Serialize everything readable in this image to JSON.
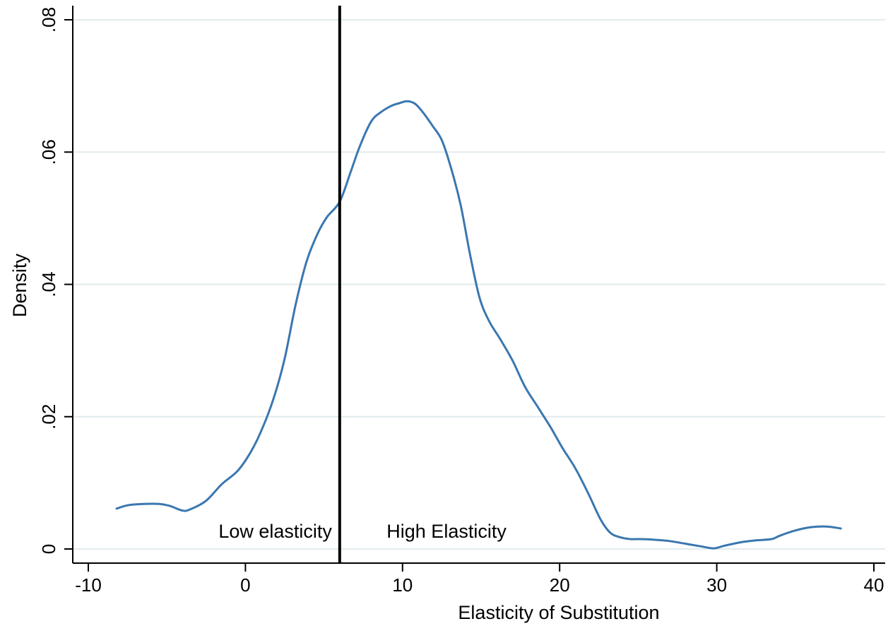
{
  "chart_data": {
    "type": "line",
    "title": "",
    "xlabel": "Elasticity of Substitution",
    "ylabel": "Density",
    "xlim": [
      -10.5,
      40.5
    ],
    "ylim": [
      0,
      0.08
    ],
    "x_ticks": [
      -10,
      0,
      10,
      20,
      30,
      40
    ],
    "x_tick_labels": [
      "-10",
      "0",
      "10",
      "20",
      "30",
      "40"
    ],
    "y_ticks": [
      0,
      0.02,
      0.04,
      0.06,
      0.08
    ],
    "y_tick_labels": [
      "0",
      ".02",
      ".04",
      ".06",
      ".08"
    ],
    "grid": "horizontal",
    "line_color": "#3a77b0",
    "series": [
      {
        "x": [
          -8.2,
          -7.5,
          -6.5,
          -5.5,
          -4.8,
          -4.0,
          -3.5,
          -2.5,
          -1.5,
          -0.5,
          0.3,
          1.0,
          1.8,
          2.5,
          3.2,
          3.9,
          4.6,
          5.2,
          6.0,
          6.7,
          7.3,
          8.0,
          8.6,
          9.3,
          9.8,
          10.3,
          10.8,
          11.3,
          11.9,
          12.5,
          13.1,
          13.7,
          14.3,
          14.9,
          15.5,
          16.2,
          17.0,
          17.8,
          18.6,
          19.4,
          20.2,
          21.0,
          21.8,
          22.6,
          23.2,
          23.8,
          24.5,
          25.2,
          26.0,
          27.0,
          28.0,
          29.0,
          29.8,
          30.5,
          31.5,
          32.5,
          33.5,
          34.0,
          35.0,
          36.0,
          37.0,
          37.9
        ],
        "y": [
          0.0061,
          0.0066,
          0.0068,
          0.0068,
          0.0065,
          0.0058,
          0.006,
          0.0073,
          0.0098,
          0.0118,
          0.0145,
          0.0178,
          0.0228,
          0.0288,
          0.037,
          0.0435,
          0.0477,
          0.0502,
          0.0525,
          0.057,
          0.061,
          0.0646,
          0.066,
          0.067,
          0.0674,
          0.0677,
          0.0673,
          0.066,
          0.064,
          0.0618,
          0.0575,
          0.052,
          0.0445,
          0.038,
          0.0345,
          0.0318,
          0.0285,
          0.0245,
          0.0215,
          0.0185,
          0.0152,
          0.0122,
          0.0085,
          0.0045,
          0.0025,
          0.0018,
          0.0015,
          0.0015,
          0.0014,
          0.0012,
          0.0008,
          0.0004,
          0.0001,
          0.0005,
          0.001,
          0.0013,
          0.0015,
          0.002,
          0.0028,
          0.0033,
          0.0034,
          0.0031
        ]
      }
    ],
    "vertical_line": {
      "x": 6.0,
      "color": "#000000"
    },
    "annotations": [
      {
        "text": "Low elasticity",
        "x": 1.9,
        "y": 0.0017
      },
      {
        "text": "High Elasticity",
        "x": 12.8,
        "y": 0.0017
      }
    ]
  }
}
